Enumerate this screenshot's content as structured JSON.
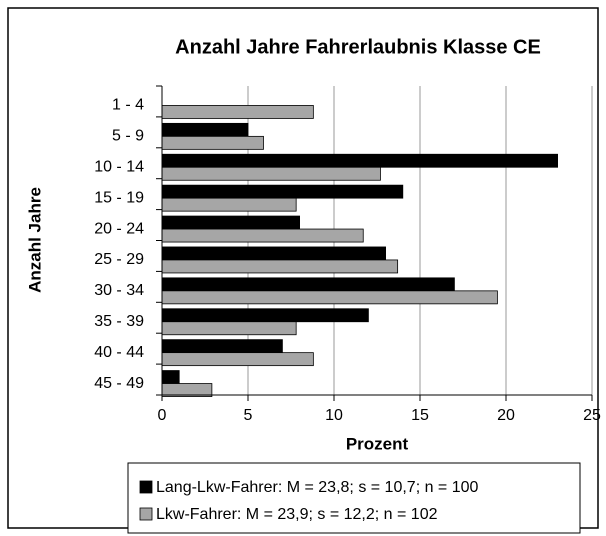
{
  "chart_data": {
    "type": "barh",
    "title": "Anzahl Jahre Fahrerlaubnis Klasse CE",
    "y_label": "Anzahl Jahre",
    "x_label": "Prozent",
    "categories": [
      "1 - 4",
      "5 - 9",
      "10 - 14",
      "15 - 19",
      "20 - 24",
      "25 - 29",
      "30 - 34",
      "35 - 39",
      "40 - 44",
      "45 - 49"
    ],
    "series": [
      {
        "name": "Lang-Lkw-Fahrer: M = 23,8; s = 10,7; n = 100",
        "color": "#000000",
        "values": [
          0,
          5,
          23,
          14,
          8,
          13,
          17,
          12,
          7,
          1
        ]
      },
      {
        "name": "Lkw-Fahrer: M = 23,9; s = 12,2; n = 102",
        "color": "#a6a6a6",
        "values": [
          8.8,
          5.9,
          12.7,
          7.8,
          11.7,
          13.7,
          19.5,
          7.8,
          8.8,
          2.9
        ]
      }
    ],
    "xlim": [
      0,
      25
    ],
    "xticks": [
      0,
      5,
      10,
      15,
      20,
      25
    ],
    "grid": true,
    "legend": "bottom"
  }
}
